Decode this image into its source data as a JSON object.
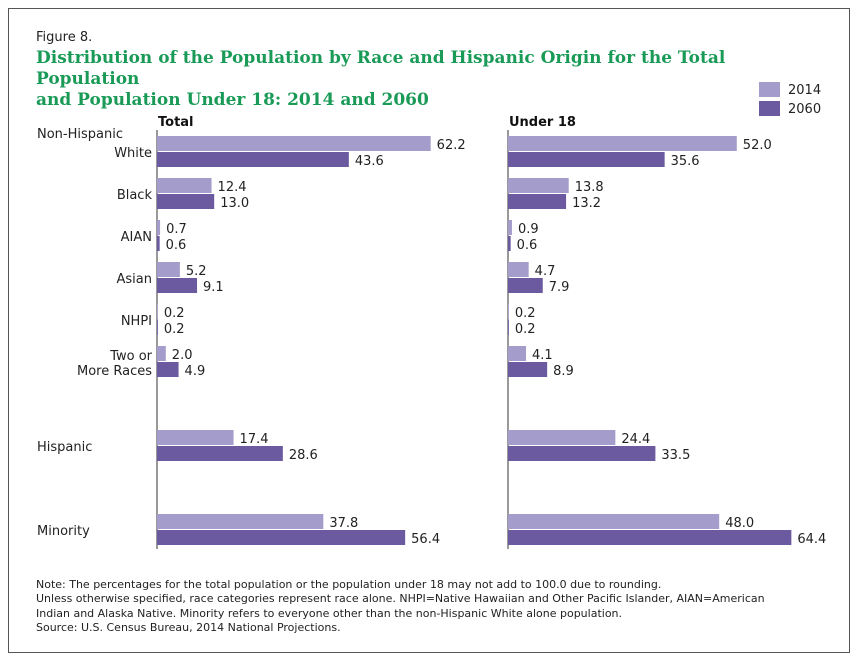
{
  "figure_label": "Figure 8.",
  "title_line1": "Distribution of the Population by Race and Hispanic Origin for the Total Population",
  "title_line2": "and Population Under 18: 2014 and 2060",
  "colors": {
    "s2014": "#a49dcb",
    "s2060": "#6b5aa0",
    "axis": "#333333",
    "text": "#222222"
  },
  "chart_data": {
    "type": "bar",
    "orientation": "horizontal",
    "group_heading": "Non-Hispanic",
    "categories": [
      [
        "White"
      ],
      [
        "Black"
      ],
      [
        "AIAN"
      ],
      [
        "Asian"
      ],
      [
        "NHPI"
      ],
      [
        "Two or",
        "More Races"
      ],
      [
        "Hispanic"
      ],
      [
        "Minority"
      ]
    ],
    "legend": [
      "2014",
      "2060"
    ],
    "panels": [
      {
        "title": "Total",
        "series": [
          {
            "name": "2014",
            "values": [
              62.2,
              12.4,
              0.7,
              5.2,
              0.2,
              2.0,
              17.4,
              37.8
            ],
            "labels": [
              "62.2",
              "12.4",
              "0.7",
              "5.2",
              "0.2",
              "2.0",
              "17.4",
              "37.8"
            ]
          },
          {
            "name": "2060",
            "values": [
              43.6,
              13.0,
              0.6,
              9.1,
              0.2,
              4.9,
              28.6,
              56.4
            ],
            "labels": [
              "43.6",
              "13.0",
              "0.6",
              "9.1",
              "0.2",
              "4.9",
              "28.6",
              "56.4"
            ]
          }
        ]
      },
      {
        "title": "Under 18",
        "series": [
          {
            "name": "2014",
            "values": [
              52.0,
              13.8,
              0.9,
              4.7,
              0.2,
              4.1,
              24.4,
              48.0
            ],
            "labels": [
              "52.0",
              "13.8",
              "0.9",
              "4.7",
              "0.2",
              "4.1",
              "24.4",
              "48.0"
            ]
          },
          {
            "name": "2060",
            "values": [
              35.6,
              13.2,
              0.6,
              7.9,
              0.2,
              8.9,
              33.5,
              64.4
            ],
            "labels": [
              "35.6",
              "13.2",
              "0.6",
              "7.9",
              "0.2",
              "8.9",
              "33.5",
              "64.4"
            ]
          }
        ]
      }
    ]
  },
  "notes": [
    "Note: The percentages for the total population or the population under 18 may not add to 100.0 due to rounding.",
    "Unless otherwise specified, race categories represent race alone. NHPI=Native Hawaiian and Other Pacific Islander, AIAN=American",
    "Indian and Alaska Native. Minority refers to everyone other than the non-Hispanic White alone population.",
    "Source: U.S. Census Bureau, 2014 National Projections."
  ]
}
